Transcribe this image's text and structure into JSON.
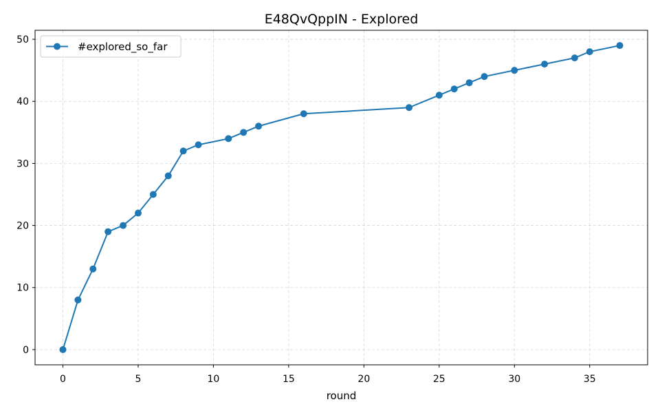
{
  "chart_data": {
    "type": "line",
    "title": "E48QvQppIN - Explored",
    "xlabel": "round",
    "ylabel": "",
    "xlim": [
      -1.85,
      38.85
    ],
    "ylim": [
      -2.45,
      51.45
    ],
    "xticks": [
      0,
      5,
      10,
      15,
      20,
      25,
      30,
      35
    ],
    "yticks": [
      0,
      10,
      20,
      30,
      40,
      50
    ],
    "grid": true,
    "legend_position": "top-left",
    "series": [
      {
        "name": "#explored_so_far",
        "color": "#1f77b4",
        "marker": "circle",
        "x": [
          0,
          1,
          2,
          3,
          4,
          5,
          6,
          7,
          8,
          9,
          11,
          12,
          13,
          16,
          23,
          25,
          26,
          27,
          28,
          30,
          32,
          34,
          35,
          37
        ],
        "y": [
          0,
          8,
          13,
          19,
          20,
          22,
          25,
          28,
          32,
          33,
          34,
          35,
          36,
          38,
          39,
          41,
          42,
          43,
          44,
          45,
          46,
          47,
          48,
          49
        ]
      }
    ]
  }
}
